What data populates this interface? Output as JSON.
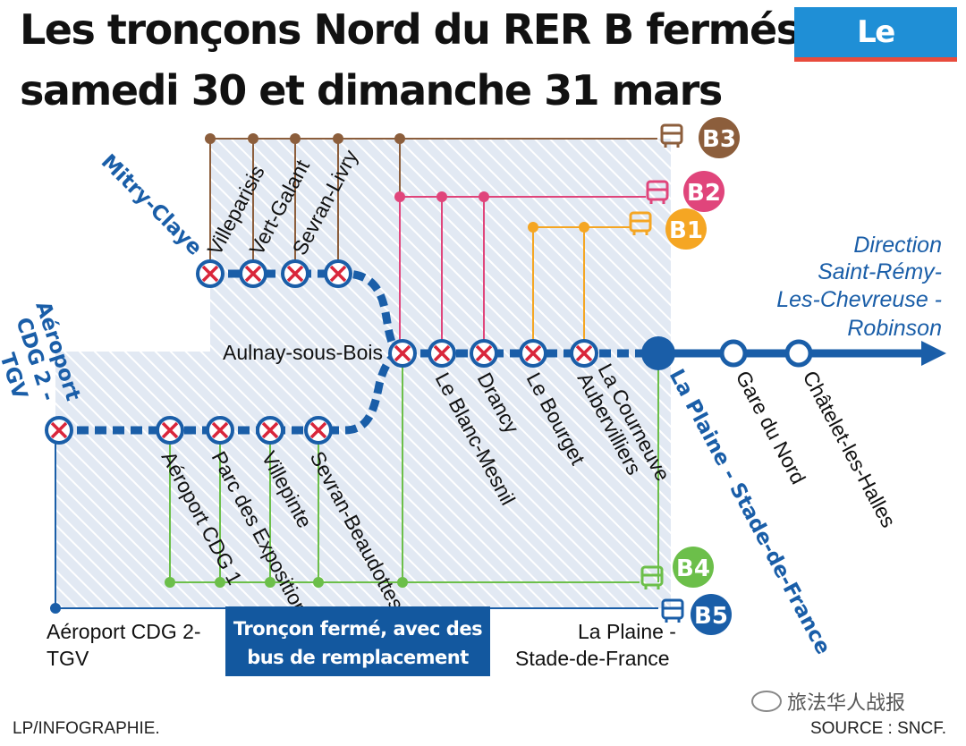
{
  "title_line1": "Les tronçons Nord du RER B fermés",
  "title_line2": "samedi 30 et dimanche 31 mars",
  "logo": "Le Parisien",
  "branches": {
    "mitry": "Mitry-Claye",
    "cdg": [
      "Aéroport",
      "CDG 2 -",
      "TGV"
    ]
  },
  "stations_mitry": [
    "Villeparisis",
    "Vert-Galant",
    "Sevran-Livry"
  ],
  "stations_cdg": [
    "Aéroport CDG 1",
    "Parc des Expositions",
    "Villepinte",
    "Sevran-Beaudottes"
  ],
  "station_aulnay": "Aulnay-sous-Bois",
  "stations_trunk": [
    "Le Blanc-Mesnil",
    "Drancy",
    "Le Bourget",
    "Aubervilliers",
    "La Courneuve"
  ],
  "station_plaine": "La Plaine - Stade-de-France",
  "stations_open": [
    "Gare du Nord",
    "Châtelet-les-Halles"
  ],
  "direction": [
    "Direction",
    "Saint-Rémy-",
    "Les-Chevreuse -",
    "Robinson"
  ],
  "bus_lines": [
    {
      "label": "B3",
      "color": "#8c5e3c"
    },
    {
      "label": "B2",
      "color": "#e0457b"
    },
    {
      "label": "B1",
      "color": "#f5a623"
    },
    {
      "label": "B4",
      "color": "#6cbf4a"
    },
    {
      "label": "B5",
      "color": "#1a5ea8"
    }
  ],
  "label_cdg_bottom": [
    "Aéroport CDG 2-",
    "TGV"
  ],
  "label_plaine_bottom": [
    "La Plaine -",
    "Stade-de-France"
  ],
  "legend": [
    "Tronçon fermé, avec des",
    "bus de remplacement"
  ],
  "credit": "LP/INFOGRAPHIE.",
  "source": "SOURCE : SNCF.",
  "watermark": "旅法华人战报",
  "colors": {
    "rer": "#1a5ea8",
    "closed": "#d9263b",
    "direction": "#1a5ea8"
  }
}
